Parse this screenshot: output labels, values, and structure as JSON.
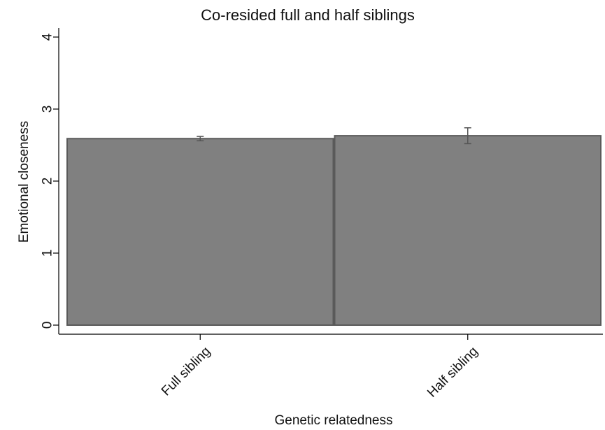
{
  "chart_data": {
    "type": "bar",
    "title": "Co-resided full and half siblings",
    "xlabel": "Genetic relatedness",
    "ylabel": "Emotional closeness",
    "categories": [
      "Full sibling",
      "Half sibling"
    ],
    "values": [
      2.59,
      2.63
    ],
    "error_low": [
      2.56,
      2.52
    ],
    "error_high": [
      2.62,
      2.74
    ],
    "ylim": [
      0,
      4
    ],
    "yticks": [
      0,
      1,
      2,
      3,
      4
    ],
    "grid": false,
    "bar_color": "#808080",
    "bar_edge_color": "#5a5a5a",
    "error_color": "#555555"
  }
}
